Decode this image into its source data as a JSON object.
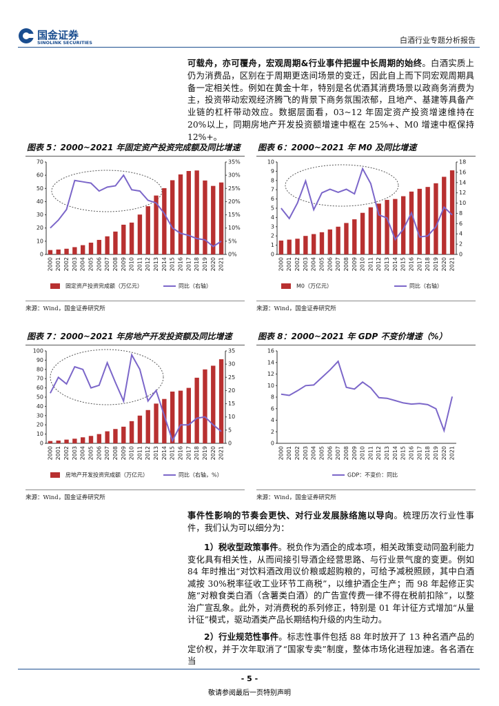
{
  "header": {
    "logo_cn": "国金证券",
    "logo_en": "SINOLINK SECURITIES",
    "report_title": "白酒行业专题分析报告"
  },
  "paragraphs": [
    {
      "bold": "可载舟，亦可覆舟，宏观周期&行业事件把握中长周期的始终",
      "text": "。白酒实质上仍为消费品，区别在于周期更迭间场景的变迁，因此自上而下同宏观周期具备一定相关性。例如在黄金十年，特别是名优酒其消费场景以政商务消费为主，投资带动宏观经济腾飞的背景下商务氛围浓郁，且地产、基建等具备产业链的杠杆带动效应。数据层面看，03~12 年固定资产投资增速维持在 20%以上，同期房地产开发投资额增速中枢在 25%+、M0 增速中枢保持 12%+。"
    },
    {
      "bold": "事件性影响的节奏会更快、对行业发展脉络施以导向",
      "text": "。梳理历次行业性事件，我们认为可以细分为："
    },
    {
      "bold": "1）税收型政策事件",
      "text": "。税负作为酒企的成本项，相关政策变动同盈利能力变化具有相关性，从而间接引导酒企经营思路、与行业景气度的变更。例如 84 年时推出“对饮料酒改用议价粮或超购粮的，可给予减税照顾，其中白酒减按 30%税率征收工业环节工商税”，以维护酒企生产；而 98 年起修正实施“对粮食类白酒（含薯类白酒）的广告宣传费一律不得在税前扣除”，以整治广宣乱象。此外，对消费税的系列修正，特别是 01 年计征方式增加“从量计征”模式，驱动酒类产品长期结构升级的内生动力。"
    },
    {
      "bold": "2）行业规范性事件",
      "text": "。标志性事件包括 88 年时放开了 13 种名酒产品的定价权，并于次年取消了“国家专卖”制度，整体市场化进程加速。各名酒在当"
    }
  ],
  "footer": {
    "page": "- 5 -",
    "disclaimer": "敬请参阅最后一页特别声明"
  },
  "chart_data": [
    {
      "type": "combo",
      "title": "图表 5：2000~2021 年固定资产投资完成额及同比增速",
      "source": "来源：Wind，国金证券研究所",
      "categories": [
        "2000",
        "2001",
        "2002",
        "2003",
        "2004",
        "2005",
        "2006",
        "2007",
        "2008",
        "2009",
        "2010",
        "2011",
        "2012",
        "2013",
        "2014",
        "2015",
        "2016",
        "2017",
        "2018",
        "2019",
        "2020",
        "2021"
      ],
      "ylim": [
        0,
        70
      ],
      "yticks": [
        0,
        10,
        20,
        30,
        40,
        50,
        60,
        70
      ],
      "y2lim": [
        0,
        35
      ],
      "y2ticks": [
        {
          "value": 0,
          "label": "0%"
        },
        {
          "value": 5,
          "label": "5%"
        },
        {
          "value": 10,
          "label": "10%"
        },
        {
          "value": 15,
          "label": "15%"
        },
        {
          "value": 20,
          "label": "20%"
        },
        {
          "value": 25,
          "label": "25%"
        },
        {
          "value": 30,
          "label": "30%"
        },
        {
          "value": 35,
          "label": "35%"
        }
      ],
      "series": [
        {
          "name": "固定资产投资完成额（万亿元）",
          "type": "bar",
          "color": "#b83030",
          "values": [
            3.3,
            3.7,
            4.3,
            5.5,
            7.0,
            8.9,
            11.0,
            13.7,
            17.3,
            22.5,
            24.1,
            30.2,
            36.5,
            44.6,
            50.2,
            56.2,
            60.6,
            63.2,
            63.6,
            56.0,
            51.9,
            54.5
          ]
        },
        {
          "name": "同比（右轴）",
          "type": "line",
          "axis": "y2",
          "color": "#7b66c9",
          "values": [
            10,
            13,
            17,
            28,
            27.5,
            27,
            24,
            25.5,
            26,
            30,
            24.5,
            24,
            20.5,
            19.5,
            15.5,
            10,
            8,
            7.2,
            6,
            5.5,
            3,
            5
          ]
        }
      ]
    },
    {
      "type": "combo",
      "title": "图表 6：2000~2021 年 M0 及同比增速",
      "source": "来源：Wind，国金证券研究所",
      "categories": [
        "2000",
        "2001",
        "2002",
        "2003",
        "2004",
        "2005",
        "2006",
        "2007",
        "2008",
        "2009",
        "2010",
        "2011",
        "2012",
        "2013",
        "2014",
        "2015",
        "2016",
        "2017",
        "2018",
        "2019",
        "2020",
        "2021"
      ],
      "ylim": [
        0,
        10
      ],
      "yticks": [
        0,
        1,
        2,
        3,
        4,
        5,
        6,
        7,
        8,
        9,
        10
      ],
      "y2lim": [
        0,
        18
      ],
      "y2ticks": [
        0,
        2,
        4,
        6,
        8,
        10,
        12,
        14,
        16,
        18
      ],
      "series": [
        {
          "name": "M0（万亿元）",
          "type": "bar",
          "color": "#b83030",
          "values": [
            1.5,
            1.6,
            1.7,
            2.0,
            2.2,
            2.4,
            2.7,
            3.0,
            3.4,
            3.8,
            4.5,
            5.1,
            5.5,
            5.9,
            6.0,
            6.3,
            6.8,
            7.1,
            7.3,
            7.7,
            8.4,
            9.1
          ]
        },
        {
          "name": "同比（右轴）",
          "type": "line",
          "axis": "y2",
          "color": "#7b66c9",
          "values": [
            9,
            7,
            10,
            14.3,
            8.7,
            12,
            12.7,
            12.1,
            12.7,
            11.8,
            16.7,
            13.8,
            7.7,
            7.1,
            2.9,
            4.9,
            8.1,
            3.4,
            3.6,
            5.4,
            9.2,
            7.7
          ]
        }
      ]
    },
    {
      "type": "combo",
      "title": "图表 7：2000~2021 年房地产开发投资额及同比增速",
      "source": "来源：Wind，国金证券研究所",
      "categories": [
        "2000",
        "2001",
        "2002",
        "2003",
        "2004",
        "2005",
        "2006",
        "2007",
        "2008",
        "2009",
        "2010",
        "2011",
        "2012",
        "2013",
        "2014",
        "2015",
        "2016",
        "2017",
        "2018",
        "2019",
        "2020",
        "2021"
      ],
      "ylim": [
        0,
        100
      ],
      "yticks": [
        0,
        10,
        20,
        30,
        40,
        50,
        60,
        70,
        80,
        90,
        100
      ],
      "y2lim": [
        0,
        35
      ],
      "y2ticks": [
        0,
        5,
        10,
        15,
        20,
        25,
        30,
        35
      ],
      "series": [
        {
          "name": "房地产开发投资完成额（万亿元）",
          "type": "bar",
          "color": "#b83030",
          "values": [
            2.5,
            3,
            4,
            5,
            6.5,
            8,
            10,
            13,
            15.5,
            18,
            24,
            30,
            36,
            43,
            48,
            56,
            57,
            60,
            71,
            80,
            84,
            91
          ]
        },
        {
          "name": "同比（右轴，%）",
          "type": "line",
          "axis": "y2",
          "color": "#7b66c9",
          "values": [
            19,
            25,
            22.5,
            29,
            28,
            21,
            22,
            30.5,
            23,
            16,
            33.5,
            28,
            16,
            20,
            10.5,
            1,
            7,
            7,
            9.5,
            10,
            7,
            4.5
          ]
        }
      ]
    },
    {
      "type": "line",
      "title": "图表 8：2000~2021 年 GDP 不变价增速（%）",
      "source": "来源：Wind，国金证券研究所",
      "categories": [
        "2000",
        "2001",
        "2002",
        "2003",
        "2004",
        "2005",
        "2006",
        "2007",
        "2008",
        "2009",
        "2010",
        "2011",
        "2012",
        "2013",
        "2014",
        "2015",
        "2016",
        "2017",
        "2018",
        "2019",
        "2020",
        "2021"
      ],
      "ylim": [
        0,
        16
      ],
      "yticks": [
        0,
        2,
        4,
        6,
        8,
        10,
        12,
        14,
        16
      ],
      "series": [
        {
          "name": "GDP：不变价：同比",
          "type": "line",
          "color": "#7b66c9",
          "values": [
            8.5,
            8.3,
            9.1,
            10,
            10.1,
            11.4,
            12.7,
            14.2,
            9.7,
            9.4,
            10.6,
            9.6,
            7.9,
            7.8,
            7.4,
            7.0,
            6.8,
            6.9,
            6.7,
            6.0,
            2.2,
            8.1
          ]
        }
      ]
    }
  ]
}
